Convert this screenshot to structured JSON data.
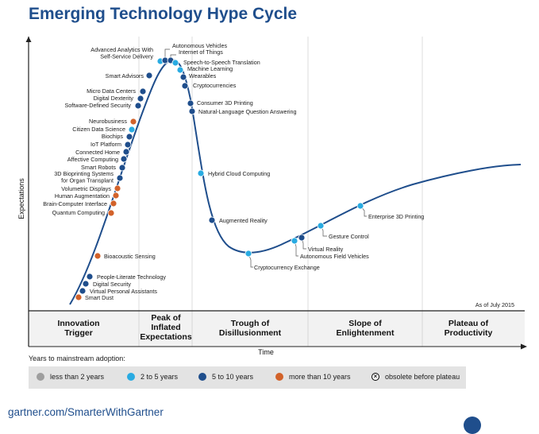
{
  "title": "Emerging Technology Hype Cycle",
  "chart_data": {
    "type": "hype_cycle",
    "title": "Emerging Technology Hype Cycle",
    "xlabel": "Time",
    "ylabel": "Expectations",
    "as_of": "As of July 2015",
    "grid": false,
    "phases": [
      {
        "line1": "Innovation",
        "line2": "Trigger",
        "line3": ""
      },
      {
        "line1": "Peak of",
        "line2": "Inflated",
        "line3": "Expectations"
      },
      {
        "line1": "Trough of",
        "line2": "Disillusionment",
        "line3": ""
      },
      {
        "line1": "Slope of",
        "line2": "Enlightenment",
        "line3": ""
      },
      {
        "line1": "Plateau of",
        "line2": "Productivity",
        "line3": ""
      }
    ],
    "legend_title": "Years to mainstream adoption:",
    "legend": [
      {
        "key": "lt2",
        "label": "less than 2 years",
        "color": "#9e9e9e"
      },
      {
        "key": "2to5",
        "label": "2 to 5 years",
        "color": "#29abe2"
      },
      {
        "key": "5to10",
        "label": "5 to 10 years",
        "color": "#1f4e8c"
      },
      {
        "key": "gt10",
        "label": "more than 10 years",
        "color": "#d2622a"
      },
      {
        "key": "obsolete",
        "label": "obsolete before plateau",
        "color": "#000000"
      }
    ],
    "technologies": [
      {
        "name": "Advanced Analytics With",
        "name2": "Self-Service Delivery",
        "category": "2to5"
      },
      {
        "name": "Autonomous Vehicles",
        "category": "5to10"
      },
      {
        "name": "Internet of Things",
        "category": "5to10"
      },
      {
        "name": "Speech-to-Speech Translation",
        "category": "2to5"
      },
      {
        "name": "Machine Learning",
        "category": "2to5"
      },
      {
        "name": "Wearables",
        "category": "5to10"
      },
      {
        "name": "Smart Advisors",
        "category": "5to10"
      },
      {
        "name": "Cryptocurrencies",
        "category": "5to10"
      },
      {
        "name": "Micro Data Centers",
        "category": "5to10"
      },
      {
        "name": "Digital Dexterity",
        "category": "5to10"
      },
      {
        "name": "Software-Defined Security",
        "category": "5to10"
      },
      {
        "name": "Consumer 3D Printing",
        "category": "5to10"
      },
      {
        "name": "Natural-Language Question Answering",
        "category": "5to10"
      },
      {
        "name": "Neurobusiness",
        "category": "gt10"
      },
      {
        "name": "Citizen Data Science",
        "category": "2to5"
      },
      {
        "name": "Biochips",
        "category": "5to10"
      },
      {
        "name": "IoT Platform",
        "category": "5to10"
      },
      {
        "name": "Connected Home",
        "category": "5to10"
      },
      {
        "name": "Affective Computing",
        "category": "5to10"
      },
      {
        "name": "Smart Robots",
        "category": "5to10"
      },
      {
        "name": "3D Bioprinting Systems",
        "name2": "for Organ Transplant",
        "category": "5to10"
      },
      {
        "name": "Volumetric Displays",
        "category": "gt10"
      },
      {
        "name": "Human Augmentation",
        "category": "gt10"
      },
      {
        "name": "Brain-Computer Interface",
        "category": "gt10"
      },
      {
        "name": "Quantum Computing",
        "category": "gt10"
      },
      {
        "name": "Hybrid Cloud Computing",
        "category": "2to5"
      },
      {
        "name": "Augmented Reality",
        "category": "5to10"
      },
      {
        "name": "Bioacoustic Sensing",
        "category": "gt10"
      },
      {
        "name": "Enterprise 3D Printing",
        "category": "2to5"
      },
      {
        "name": "Gesture Control",
        "category": "2to5"
      },
      {
        "name": "Virtual Reality",
        "category": "5to10"
      },
      {
        "name": "Autonomous Field Vehicles",
        "category": "2to5"
      },
      {
        "name": "Cryptocurrency Exchange",
        "category": "2to5"
      },
      {
        "name": "People-Literate Technology",
        "category": "5to10"
      },
      {
        "name": "Digital Security",
        "category": "5to10"
      },
      {
        "name": "Virtual Personal Assistants",
        "category": "5to10"
      },
      {
        "name": "Smart Dust",
        "category": "gt10"
      }
    ]
  },
  "footer": "gartner.com/SmarterWithGartner"
}
